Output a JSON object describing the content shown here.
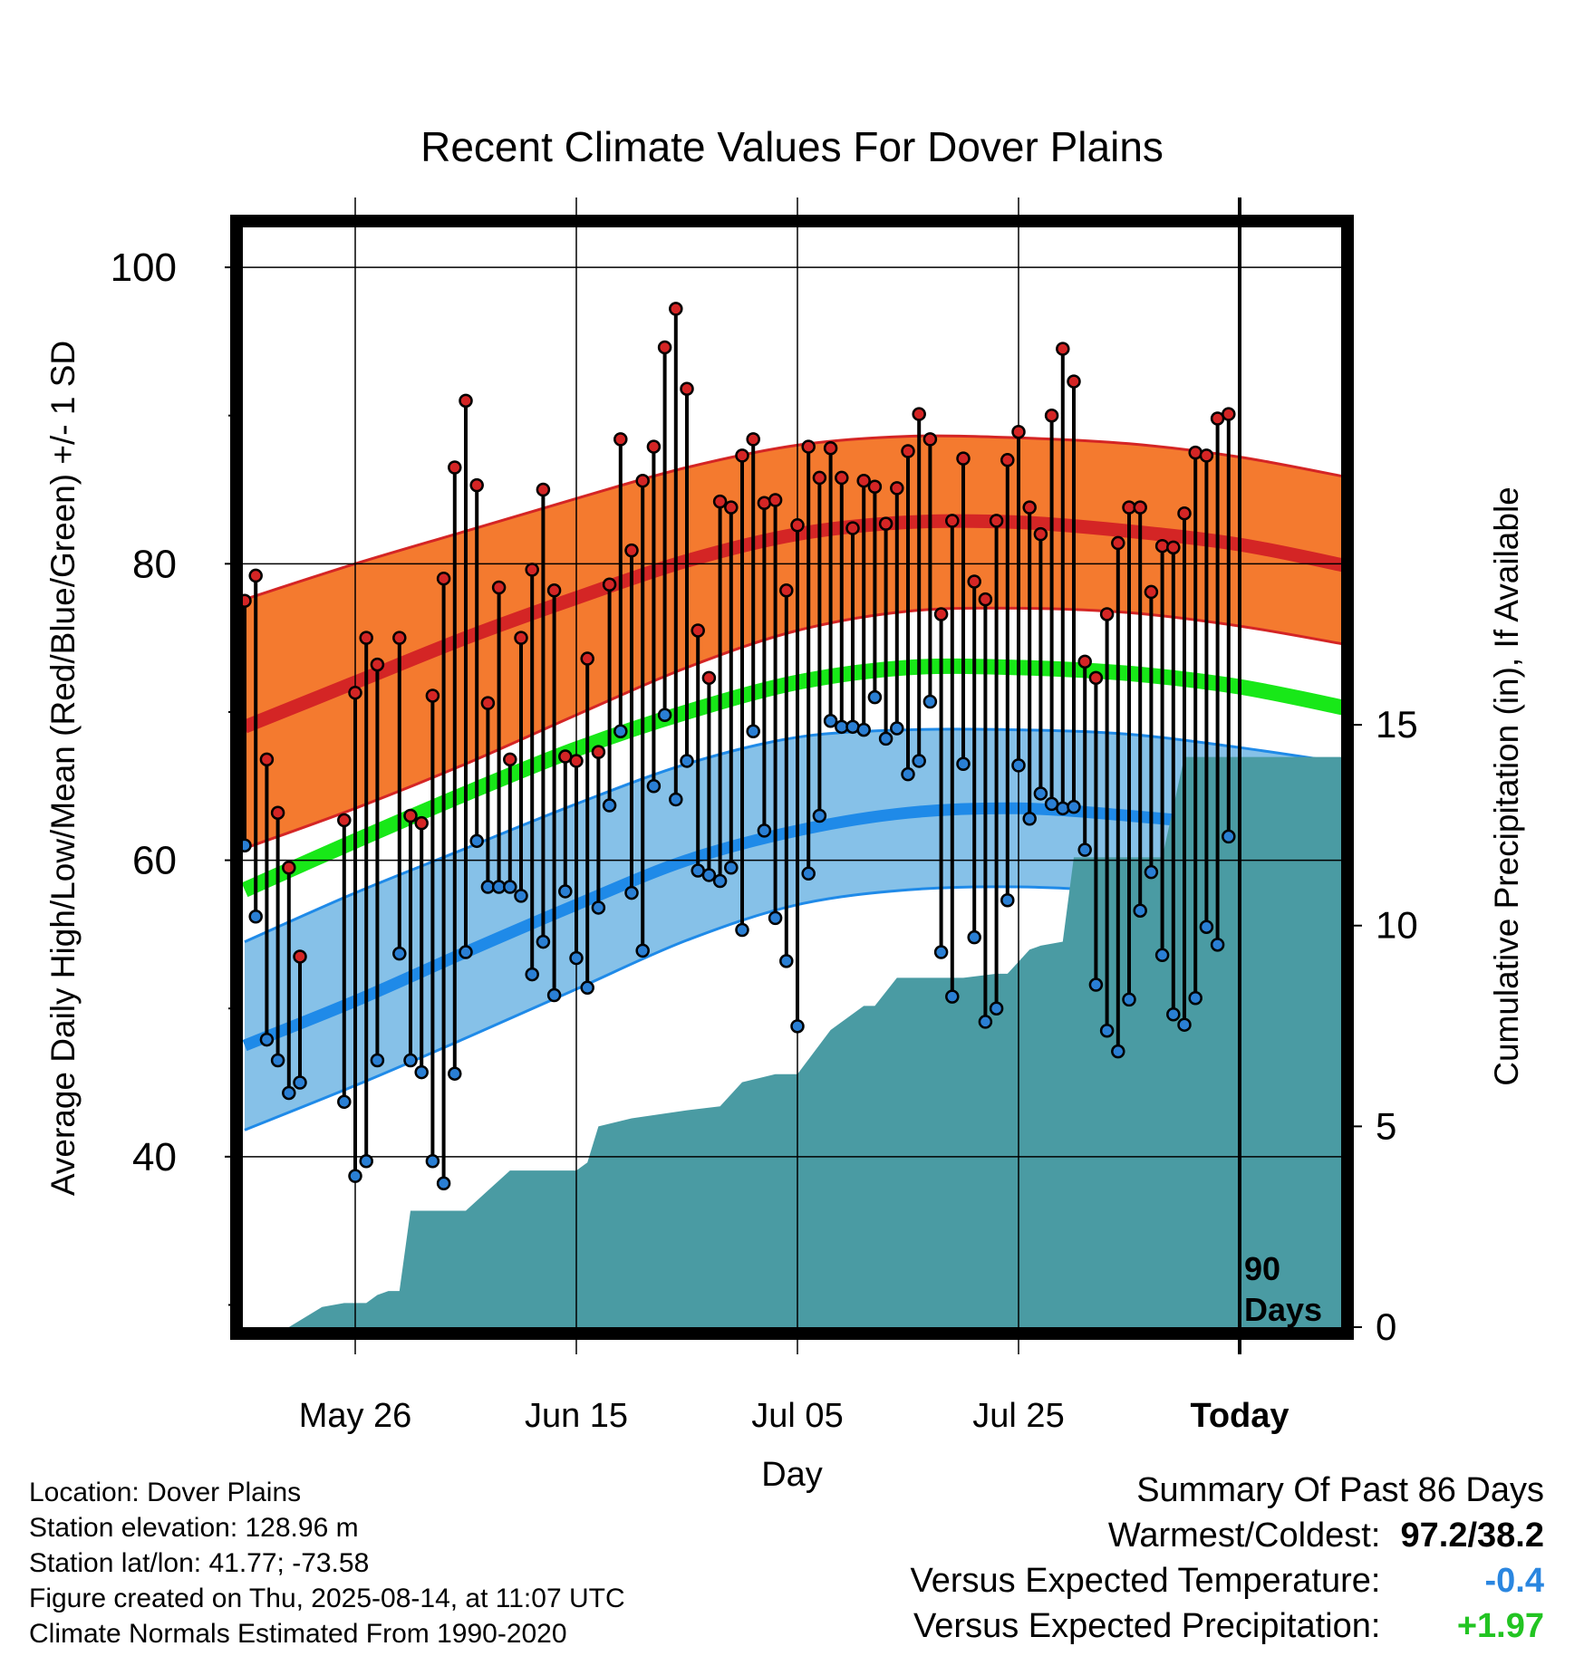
{
  "chart_data": {
    "type": "line",
    "title": "Recent Climate Values For Dover Plains",
    "xlabel": "Day",
    "ylabel": "Average Daily High/Low/Mean (Red/Blue/Green) +/- 1 SD",
    "y2label": "Cumulative Precipitation (in), If Available",
    "ylim": [
      28.5,
      103
    ],
    "y_ticks": [
      40,
      60,
      80,
      100
    ],
    "y2lim": [
      0,
      27.5
    ],
    "y2_ticks": [
      0,
      5,
      10,
      15
    ],
    "xlim": [
      -10,
      90
    ],
    "x_ticks": [
      {
        "day": 0,
        "label": "May 26"
      },
      {
        "day": 20,
        "label": "Jun 15"
      },
      {
        "day": 40,
        "label": "Jul 05"
      },
      {
        "day": 60,
        "label": "Jul 25"
      },
      {
        "day": 80,
        "label": "Today"
      }
    ],
    "today_day": 80,
    "today_marker_label_line1": "90",
    "today_marker_label_line2": "Days",
    "grid": true,
    "normals": {
      "day": [
        -10,
        0,
        10,
        20,
        30,
        40,
        50,
        60,
        70,
        80,
        90
      ],
      "high_mean": [
        69,
        72,
        75,
        77.7,
        80.2,
        82,
        82.8,
        82.8,
        82.2,
        81.3,
        79.8
      ],
      "high_upper": [
        77.6,
        80,
        82.2,
        84.4,
        86.5,
        88,
        88.6,
        88.5,
        88.1,
        87.2,
        85.8
      ],
      "high_lower": [
        60.8,
        63.5,
        66.5,
        69.8,
        73,
        75.5,
        76.8,
        77,
        76.7,
        75.8,
        74.5
      ],
      "mean_normal": [
        58,
        61.3,
        64.5,
        67.5,
        70,
        72,
        73,
        73,
        72.6,
        71.7,
        70.2
      ],
      "low_mean": [
        47.5,
        50.5,
        53.8,
        57,
        60,
        62,
        63.2,
        63.5,
        63,
        62.2,
        60.7
      ],
      "low_upper": [
        54.5,
        57.8,
        60.8,
        63.8,
        66.5,
        68.3,
        68.8,
        68.8,
        68.5,
        67.6,
        66.5
      ],
      "low_lower": [
        41.8,
        44.8,
        48,
        51.3,
        54.6,
        57,
        58,
        58.2,
        57.8,
        56.8,
        55
      ]
    },
    "series": [
      {
        "name": "High",
        "color": "#d42525",
        "values": [
          77.5,
          79.2,
          66.8,
          63.2,
          59.5,
          53.5,
          null,
          null,
          null,
          62.7,
          71.3,
          75,
          73.2,
          null,
          75,
          63,
          62.5,
          71.1,
          79,
          86.5,
          91,
          85.3,
          70.6,
          78.4,
          66.8,
          75,
          79.6,
          85,
          78.2,
          67,
          66.7,
          73.6,
          67.3,
          78.6,
          88.4,
          80.9,
          85.6,
          87.9,
          94.6,
          97.2,
          91.8,
          75.5,
          72.3,
          84.2,
          83.8,
          87.3,
          88.4,
          84.1,
          84.3,
          78.2,
          82.6,
          87.9,
          85.8,
          87.8,
          85.8,
          82.4,
          85.6,
          85.2,
          82.7,
          85.1,
          87.6,
          90.1,
          88.4,
          76.6,
          82.9,
          87.1,
          78.8,
          77.6,
          82.9,
          87,
          88.9,
          83.8,
          82,
          90,
          94.5,
          92.3,
          73.4,
          72.3,
          76.6,
          81.4,
          83.8,
          83.8,
          78.1,
          81.2,
          81.1,
          83.4,
          87.5,
          87.3,
          89.8,
          90.1
        ],
        "x": [
          -10,
          -9,
          -8,
          -7,
          -6,
          -5,
          -4,
          -3,
          -2,
          -1,
          0,
          1,
          2,
          3,
          4,
          5,
          6,
          7,
          8,
          9,
          10,
          11,
          12,
          13,
          14,
          15,
          16,
          17,
          18,
          19,
          20,
          21,
          22,
          23,
          24,
          25,
          26,
          27,
          28,
          29,
          30,
          31,
          32,
          33,
          34,
          35,
          36,
          37,
          38,
          39,
          40,
          41,
          42,
          43,
          44,
          45,
          46,
          47,
          48,
          49,
          50,
          51,
          52,
          53,
          54,
          55,
          56,
          57,
          58,
          59,
          60,
          61,
          62,
          63,
          64,
          65,
          66,
          67,
          68,
          69,
          70,
          71,
          72,
          73,
          74,
          75,
          76,
          77,
          78,
          79
        ]
      },
      {
        "name": "Low",
        "color": "#2a7fd4",
        "values": [
          61,
          56.2,
          47.9,
          46.5,
          44.3,
          45,
          null,
          null,
          null,
          43.7,
          38.7,
          39.7,
          46.5,
          null,
          53.7,
          46.5,
          45.7,
          39.7,
          38.2,
          45.6,
          53.8,
          61.3,
          58.2,
          58.2,
          58.2,
          57.6,
          52.3,
          54.5,
          50.9,
          57.9,
          53.4,
          51.4,
          56.8,
          63.7,
          68.7,
          57.8,
          53.9,
          65,
          69.8,
          64.1,
          66.7,
          59.3,
          59,
          58.6,
          59.5,
          55.3,
          68.7,
          62,
          56.1,
          53.2,
          48.8,
          59.1,
          63,
          69.4,
          69,
          69,
          68.8,
          71,
          68.2,
          68.9,
          65.8,
          66.7,
          70.7,
          53.8,
          50.8,
          66.5,
          54.8,
          49.1,
          50,
          57.3,
          66.4,
          62.8,
          64.5,
          63.8,
          63.5,
          63.6,
          60.7,
          51.6,
          48.5,
          47.1,
          50.6,
          56.6,
          59.2,
          53.6,
          49.6,
          48.9,
          50.7,
          55.5,
          54.3,
          61.6
        ],
        "x": [
          -10,
          -9,
          -8,
          -7,
          -6,
          -5,
          -4,
          -3,
          -2,
          -1,
          0,
          1,
          2,
          3,
          4,
          5,
          6,
          7,
          8,
          9,
          10,
          11,
          12,
          13,
          14,
          15,
          16,
          17,
          18,
          19,
          20,
          21,
          22,
          23,
          24,
          25,
          26,
          27,
          28,
          29,
          30,
          31,
          32,
          33,
          34,
          35,
          36,
          37,
          38,
          39,
          40,
          41,
          42,
          43,
          44,
          45,
          46,
          47,
          48,
          49,
          50,
          51,
          52,
          53,
          54,
          55,
          56,
          57,
          58,
          59,
          60,
          61,
          62,
          63,
          64,
          65,
          66,
          67,
          68,
          69,
          70,
          71,
          72,
          73,
          74,
          75,
          76,
          77,
          78,
          79
        ]
      },
      {
        "name": "Cumulative Precipitation",
        "color": "#4a9ba3",
        "x": [
          -10,
          -6,
          -3,
          -1,
          0,
          1,
          2,
          3,
          4,
          5,
          10,
          12,
          14,
          20,
          21,
          22,
          25,
          30,
          33,
          35,
          38,
          40,
          43,
          46,
          47,
          49,
          55,
          58,
          59,
          60,
          61,
          62,
          64,
          65,
          66,
          67,
          73,
          75,
          90
        ],
        "values": [
          0,
          0,
          0.5,
          0.6,
          0.6,
          0.6,
          0.8,
          0.9,
          0.9,
          2.9,
          2.9,
          3.4,
          3.9,
          3.9,
          4.1,
          5,
          5.2,
          5.4,
          5.5,
          6.1,
          6.3,
          6.3,
          7.4,
          8,
          8,
          8.7,
          8.7,
          8.8,
          8.8,
          9.1,
          9.4,
          9.5,
          9.6,
          11.7,
          11.7,
          11.7,
          11.7,
          14.2,
          14.2
        ]
      }
    ]
  },
  "info": {
    "location": "Location: Dover Plains",
    "elevation": "Station elevation: 128.96 m",
    "latlon": "Station lat/lon: 41.77; -73.58",
    "created": "Figure created on Thu, 2025-08-14, at 11:07 UTC",
    "normals": "Climate Normals Estimated From 1990-2020"
  },
  "summary": {
    "title": "Summary Of Past 86 Days",
    "warmest_label": "Warmest/Coldest:",
    "warmest_value": "97.2/38.2",
    "temp_label": "Versus Expected Temperature:",
    "temp_value": "-0.4",
    "temp_color": "#2a86e0",
    "precip_label": "Versus Expected Precipitation:",
    "precip_value": "+1.97",
    "precip_color": "#22c422"
  },
  "colors": {
    "high_band": "#f47a2f",
    "high_band_edge": "#d42525",
    "high_mean": "#d42525",
    "mean_normal": "#18e818",
    "low_band": "#86c1e8",
    "low_band_edge": "#1f8ae8",
    "low_mean": "#1f8ae8",
    "precip": "#4a9ba3",
    "high_dot": "#d42525",
    "low_dot": "#2a7fd4"
  }
}
